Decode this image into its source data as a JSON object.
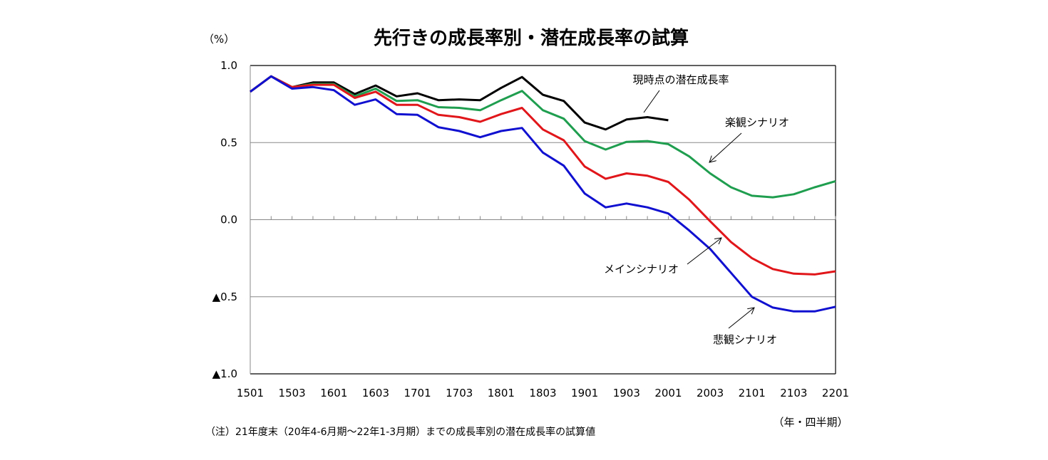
{
  "chart_data": {
    "type": "line",
    "title": "先行きの成長率別・潜在成長率の試算",
    "ylabel": "（%）",
    "xlabel": "（年・四半期）",
    "note": "（注）21年度末（20年4-6月期～22年1-3月期）までの成長率別の潜在成長率の試算値",
    "ylim": [
      -1.0,
      1.0
    ],
    "yticks": [
      1.0,
      0.5,
      0.0,
      -0.5,
      -1.0
    ],
    "ytick_labels": [
      "1.0",
      "0.5",
      "0.0",
      "▲0.5",
      "▲1.0"
    ],
    "x": [
      "1501",
      "1502",
      "1503",
      "1504",
      "1601",
      "1602",
      "1603",
      "1604",
      "1701",
      "1702",
      "1703",
      "1704",
      "1801",
      "1802",
      "1803",
      "1804",
      "1901",
      "1902",
      "1903",
      "1904",
      "2001",
      "2002",
      "2003",
      "2004",
      "2101",
      "2102",
      "2103",
      "2104",
      "2201"
    ],
    "xtick_labels": [
      "1501",
      "1503",
      "1601",
      "1603",
      "1701",
      "1703",
      "1801",
      "1803",
      "1901",
      "1903",
      "2001",
      "2003",
      "2101",
      "2103",
      "2201"
    ],
    "grid": "horizontal",
    "legend": "none (inline annotations)",
    "series": [
      {
        "name": "現時点の潜在成長率",
        "color": "#000000",
        "values": [
          0.83,
          0.93,
          0.86,
          0.89,
          0.89,
          0.815,
          0.87,
          0.8,
          0.82,
          0.775,
          0.78,
          0.775,
          0.855,
          0.925,
          0.81,
          0.77,
          0.63,
          0.585,
          0.65,
          0.665,
          0.645,
          null,
          null,
          null,
          null,
          null,
          null,
          null,
          null
        ]
      },
      {
        "name": "楽観シナリオ",
        "color": "#1f9e4f",
        "values": [
          0.83,
          0.93,
          0.86,
          0.88,
          0.88,
          0.8,
          0.85,
          0.77,
          0.775,
          0.73,
          0.725,
          0.71,
          0.775,
          0.835,
          0.71,
          0.655,
          0.51,
          0.455,
          0.505,
          0.51,
          0.49,
          0.41,
          0.3,
          0.21,
          0.155,
          0.145,
          0.165,
          0.21,
          0.25
        ]
      },
      {
        "name": "メインシナリオ",
        "color": "#e0161b",
        "values": [
          0.83,
          0.93,
          0.86,
          0.875,
          0.875,
          0.79,
          0.83,
          0.745,
          0.745,
          0.68,
          0.665,
          0.635,
          0.685,
          0.725,
          0.585,
          0.515,
          0.345,
          0.265,
          0.3,
          0.285,
          0.245,
          0.13,
          -0.01,
          -0.145,
          -0.25,
          -0.32,
          -0.35,
          -0.355,
          -0.335
        ]
      },
      {
        "name": "悲観シナリオ",
        "color": "#1010d0",
        "values": [
          0.83,
          0.93,
          0.85,
          0.86,
          0.84,
          0.745,
          0.78,
          0.685,
          0.68,
          0.6,
          0.575,
          0.535,
          0.575,
          0.595,
          0.435,
          0.35,
          0.17,
          0.08,
          0.105,
          0.08,
          0.04,
          -0.07,
          -0.19,
          -0.345,
          -0.5,
          -0.57,
          -0.595,
          -0.595,
          -0.565
        ]
      }
    ],
    "annotations": [
      {
        "text": "現時点の潜在成長率",
        "series": "現時点の潜在成長率",
        "arrow": false
      },
      {
        "text": "楽観シナリオ",
        "series": "楽観シナリオ",
        "arrow": true
      },
      {
        "text": "メインシナリオ",
        "series": "メインシナリオ",
        "arrow": true
      },
      {
        "text": "悲観シナリオ",
        "series": "悲観シナリオ",
        "arrow": true
      }
    ]
  }
}
